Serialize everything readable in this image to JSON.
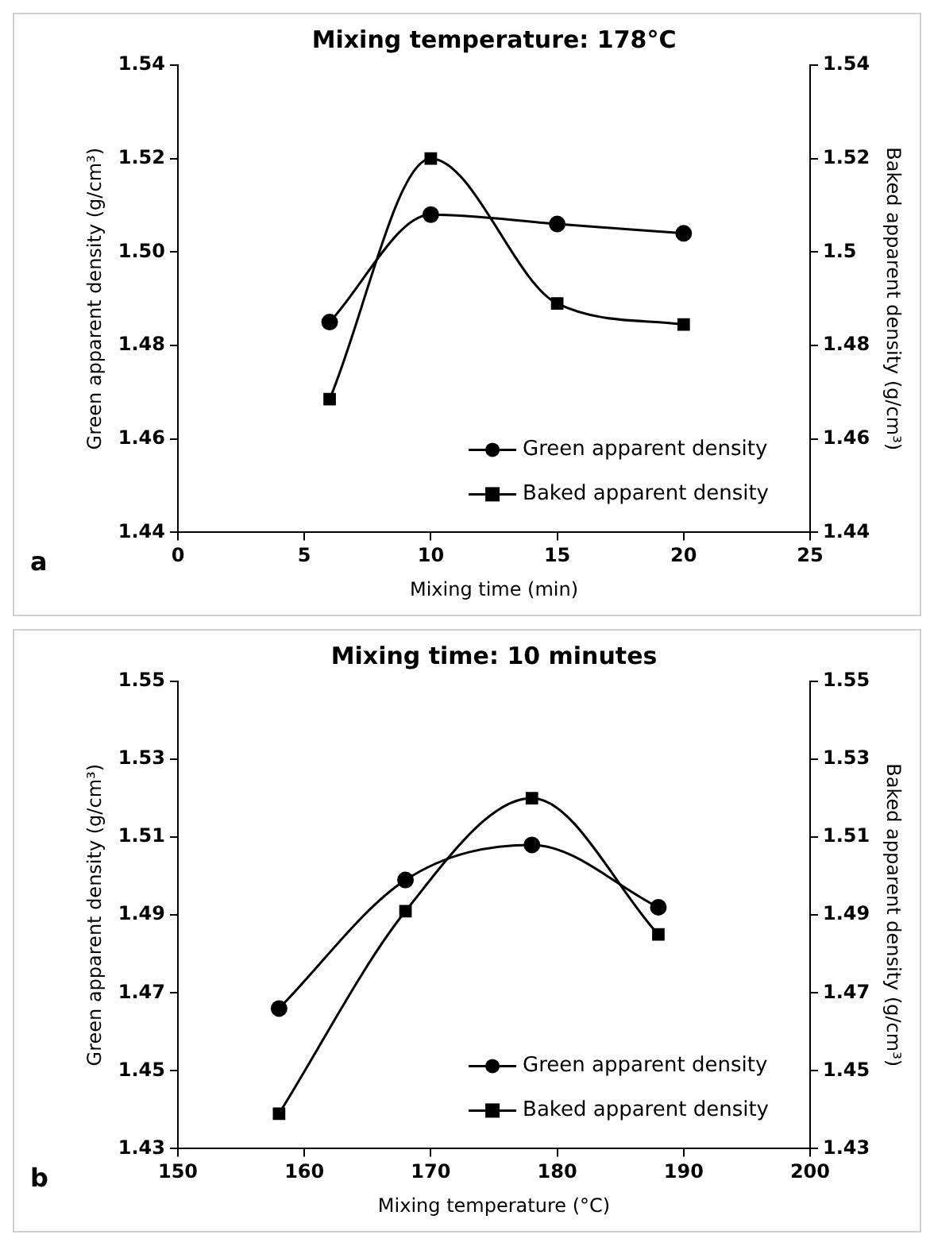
{
  "chart_data": [
    {
      "type": "line",
      "title": "Mixing temperature: 178°C",
      "xlabel": "Mixing time (min)",
      "ylabel": "Green apparent density (g/cm³)",
      "y2label": "Baked apparent density (g/cm³)",
      "x": [
        6,
        10,
        15,
        20
      ],
      "series": [
        {
          "name": "Green apparent density",
          "color": "#000000",
          "marker": "circle",
          "values": [
            1.485,
            1.508,
            1.506,
            1.504
          ]
        },
        {
          "name": "Baked apparent density",
          "color": "#000000",
          "marker": "square",
          "values": [
            1.4685,
            1.52,
            1.489,
            1.4845
          ]
        }
      ],
      "xlim": [
        0,
        25
      ],
      "xticks": [
        0,
        5,
        10,
        15,
        20,
        25
      ],
      "ylim": [
        1.44,
        1.54
      ],
      "yticks": [
        1.44,
        1.46,
        1.48,
        {
          "value": 1.5,
          "label": "1.50"
        },
        1.52,
        1.54
      ],
      "y2lim": [
        1.44,
        1.54
      ],
      "y2ticks": [
        1.44,
        1.46,
        1.48,
        1.5,
        1.52,
        1.54
      ],
      "grid": false,
      "legend": "bottom right",
      "annotations": [
        "a"
      ]
    },
    {
      "type": "line",
      "title": "Mixing time: 10 minutes",
      "xlabel": "Mixing temperature (°C)",
      "ylabel": "Green apparent density (g/cm³)",
      "y2label": "Baked apparent density (g/cm³)",
      "x": [
        158,
        168,
        178,
        188
      ],
      "series": [
        {
          "name": "Green apparent density",
          "color": "#000000",
          "marker": "circle",
          "values": [
            1.466,
            1.499,
            1.508,
            1.492
          ]
        },
        {
          "name": "Baked apparent density",
          "color": "#000000",
          "marker": "square",
          "values": [
            1.439,
            1.491,
            1.52,
            1.485
          ]
        }
      ],
      "xlim": [
        150,
        200
      ],
      "xticks": [
        150,
        160,
        170,
        180,
        190,
        200
      ],
      "ylim": [
        1.43,
        1.55
      ],
      "yticks": [
        1.43,
        1.45,
        1.47,
        1.49,
        1.51,
        1.53,
        1.55
      ],
      "y2lim": [
        1.43,
        1.55
      ],
      "y2ticks": [
        1.43,
        1.45,
        1.47,
        1.49,
        1.51,
        1.53,
        1.55
      ],
      "grid": false,
      "legend": "bottom right",
      "annotations": [
        "b"
      ]
    }
  ]
}
